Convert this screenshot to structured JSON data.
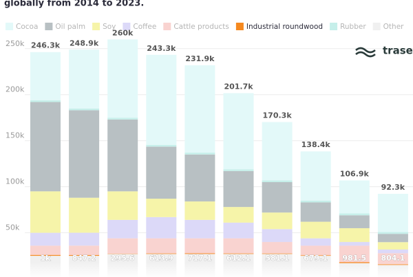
{
  "chart_data": {
    "type": "stacked_bar",
    "title": "globally from 2014 to 2023.",
    "logo": "trase",
    "categories": [
      null,
      null,
      null,
      null,
      null,
      null,
      null,
      null,
      null,
      null
    ],
    "series": [
      {
        "name": "Other",
        "color": "#f0f0f0",
        "values": [
          25000,
          25000,
          27000,
          27000,
          27000,
          27000,
          27000,
          25000,
          17000,
          15000
        ]
      },
      {
        "name": "Industrial roundwood",
        "color": "#f5891f",
        "highlighted": true,
        "values": [
          1000,
          847.2,
          295.6,
          613.9,
          717.1,
          612.1,
          581.1,
          679.1,
          981.5,
          804.1
        ],
        "value_labels": [
          "1k",
          "847.2",
          "295.6",
          "613.9",
          "717.1",
          "612.1",
          "581.1",
          "679.1",
          "981.5",
          "804.1"
        ]
      },
      {
        "name": "Cattle products",
        "color": "#f9d3d0",
        "values": [
          10000,
          10200,
          16700,
          16400,
          16300,
          16400,
          12400,
          10300,
          18000,
          12000
        ]
      },
      {
        "name": "Coffee",
        "color": "#dcd9f8",
        "values": [
          14000,
          14000,
          20000,
          23000,
          20000,
          17000,
          14000,
          8000,
          4000,
          4000
        ]
      },
      {
        "name": "Soy",
        "color": "#f6f4a9",
        "values": [
          45000,
          38000,
          31000,
          20000,
          20000,
          17000,
          18000,
          18000,
          15000,
          8000
        ]
      },
      {
        "name": "Oil palm",
        "color": "#b8c0c3",
        "values": [
          97000,
          95000,
          78000,
          56500,
          51000,
          39000,
          33000,
          21000,
          14000,
          9000
        ]
      },
      {
        "name": "Rubber",
        "color": "#c6efea",
        "values": [
          2000,
          2000,
          2000,
          2000,
          2000,
          2000,
          2000,
          2000,
          2000,
          2000
        ]
      },
      {
        "name": "Cocoa",
        "color": "#e3f9f9",
        "values": [
          52300,
          63900,
          85000,
          97800,
          94900,
          82700,
          63300,
          53400,
          35900,
          41500
        ]
      }
    ],
    "legend_order": [
      7,
      5,
      4,
      3,
      2,
      1,
      6,
      0
    ],
    "totals": {
      "values": [
        246300,
        248900,
        260000,
        243300,
        231900,
        201700,
        170300,
        138400,
        106900,
        92300
      ],
      "value_labels": [
        "246.3k",
        "248.9k",
        "260k",
        "243.3k",
        "231.9k",
        "201.7k",
        "170.3k",
        "138.4k",
        "106.9k",
        "92.3k"
      ]
    },
    "ylim": [
      0,
      280000
    ],
    "yticks": [
      {
        "value": 50000,
        "label": "50k"
      },
      {
        "value": 100000,
        "label": "100k"
      },
      {
        "value": 150000,
        "label": "150k"
      },
      {
        "value": 200000,
        "label": "200k"
      },
      {
        "value": 250000,
        "label": "250k"
      }
    ],
    "grid": true
  }
}
